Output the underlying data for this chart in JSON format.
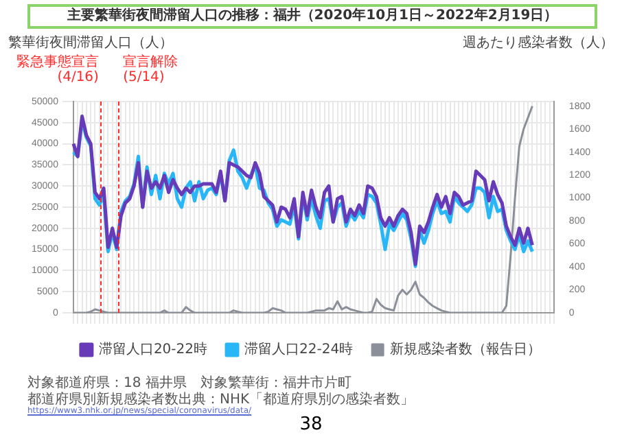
{
  "chart_data": {
    "type": "line",
    "title": "主要繁華街夜間滞留人口の推移：福井（2020年10月1日～2022年2月19日）",
    "ylabel": "繁華街夜間滞留人口（人）",
    "y2label": "週あたり感染者数（人）",
    "categories": [
      null,
      null,
      null,
      null,
      null,
      null,
      null,
      null,
      null,
      null,
      null,
      null,
      null,
      null,
      null,
      null,
      null,
      null,
      null,
      null,
      null,
      null,
      null,
      null,
      null,
      null,
      null,
      null,
      null,
      null,
      null,
      null,
      null,
      null,
      null,
      null,
      null,
      null,
      null,
      null,
      null,
      null,
      null,
      null,
      null,
      null,
      null,
      null,
      null,
      null,
      null,
      null,
      null,
      null,
      null,
      null,
      null,
      null,
      null,
      null,
      null,
      null,
      null,
      null,
      null,
      null,
      null,
      null,
      null,
      null,
      null,
      null,
      null,
      null,
      null,
      null,
      null,
      null,
      null,
      null,
      null,
      null,
      null,
      null,
      null,
      null,
      null,
      null,
      null,
      null,
      null,
      null,
      null,
      null,
      null,
      null,
      null,
      null,
      null,
      null,
      null,
      null,
      null,
      null,
      null,
      null,
      null,
      null,
      null,
      null,
      null,
      null
    ],
    "series": [
      {
        "name": "滞留人口20-22時",
        "color": "#673ab7",
        "values": [
          40000,
          37000,
          46500,
          42000,
          40000,
          28500,
          27000,
          29500,
          15500,
          20000,
          15500,
          23000,
          26000,
          27000,
          30000,
          35500,
          25000,
          33500,
          29500,
          31000,
          29500,
          32500,
          28500,
          31500,
          29500,
          28000,
          29500,
          28500,
          30000,
          30000,
          30500,
          30500,
          30500,
          28500,
          33500,
          26500,
          35500,
          35000,
          34500,
          33500,
          32500,
          32000,
          35500,
          33000,
          27500,
          26500,
          25500,
          21500,
          25000,
          24500,
          22500,
          27000,
          18000,
          28500,
          23000,
          29000,
          25000,
          22500,
          28500,
          30000,
          21500,
          27000,
          27500,
          21500,
          24500,
          23000,
          25500,
          23500,
          30000,
          29500,
          27500,
          22500,
          20500,
          22500,
          20500,
          23000,
          24500,
          23500,
          19000,
          11500,
          20500,
          19000,
          21500,
          25000,
          28000,
          25000,
          27500,
          23500,
          28500,
          27500,
          25500,
          26000,
          26500,
          33500,
          32500,
          31500,
          26500,
          31000,
          28000,
          26000,
          20500,
          18000,
          16000,
          20000,
          16500,
          20000,
          16000,
          null,
          null,
          null,
          null,
          null
        ]
      },
      {
        "name": "滞留人口22-24時",
        "color": "#29b6f6",
        "values": [
          38000,
          37000,
          45500,
          41500,
          39500,
          27000,
          25500,
          28000,
          14500,
          19000,
          15000,
          24000,
          26500,
          27500,
          30500,
          37000,
          25000,
          34500,
          28000,
          32500,
          27000,
          33000,
          30500,
          33000,
          27000,
          25000,
          29500,
          31000,
          26500,
          31000,
          27000,
          29000,
          29500,
          28000,
          33000,
          26500,
          36000,
          38500,
          33500,
          32000,
          29500,
          32500,
          35000,
          29500,
          29000,
          26000,
          24500,
          20500,
          22000,
          21500,
          21000,
          25500,
          17500,
          27500,
          22000,
          27000,
          23000,
          20000,
          26500,
          27000,
          21500,
          25000,
          26000,
          20500,
          23500,
          22000,
          24000,
          22500,
          28000,
          27500,
          26000,
          21000,
          15000,
          21000,
          19500,
          21500,
          23500,
          22000,
          17500,
          11000,
          19500,
          16500,
          19500,
          23500,
          26500,
          23500,
          24000,
          21500,
          27500,
          26000,
          25000,
          24000,
          25500,
          29500,
          29500,
          28500,
          22500,
          27500,
          24000,
          24500,
          19500,
          17000,
          15000,
          18500,
          14500,
          17000,
          14500,
          null,
          null,
          null,
          null,
          null
        ]
      },
      {
        "name": "新規感染者数（報告日）",
        "color": "#8a8f99",
        "axis": "y2",
        "values": [
          0,
          0,
          0,
          0,
          10,
          30,
          20,
          10,
          0,
          0,
          0,
          0,
          0,
          0,
          0,
          0,
          0,
          0,
          0,
          0,
          0,
          20,
          0,
          0,
          0,
          0,
          50,
          20,
          0,
          0,
          0,
          0,
          0,
          0,
          0,
          0,
          0,
          20,
          10,
          0,
          0,
          0,
          0,
          0,
          0,
          10,
          40,
          30,
          20,
          0,
          0,
          0,
          0,
          0,
          0,
          10,
          20,
          20,
          20,
          40,
          30,
          100,
          30,
          50,
          30,
          20,
          10,
          0,
          0,
          10,
          120,
          70,
          40,
          30,
          20,
          150,
          200,
          160,
          200,
          270,
          160,
          130,
          90,
          60,
          40,
          20,
          10,
          0,
          0,
          0,
          0,
          0,
          0,
          0,
          0,
          0,
          0,
          0,
          0,
          0,
          60,
          500,
          1000,
          1450,
          1600,
          1700,
          1800,
          null,
          null,
          null,
          null,
          null
        ]
      }
    ],
    "ylim": [
      0,
      50000
    ],
    "yticks": [
      0,
      5000,
      10000,
      15000,
      20000,
      25000,
      30000,
      35000,
      40000,
      45000,
      50000
    ],
    "y2lim": [
      0,
      1840
    ],
    "y2ticks": [
      0,
      200,
      400,
      600,
      800,
      1000,
      1200,
      1400,
      1600,
      1800
    ],
    "grid": true,
    "legend": "bottom",
    "marker": "none",
    "line_style": "solid",
    "annotations": [
      "緊急事態宣言(4/16)",
      "宣言解除(5/14)",
      "対象都道府県：18 福井県　対象繁華街：福井市片町",
      "都道府県別新規感染者数出典：NHK「都道府県別の感染者数」",
      "https://www3.nhk.or.jp/news/special/coronavirus/data/",
      "38"
    ]
  }
}
